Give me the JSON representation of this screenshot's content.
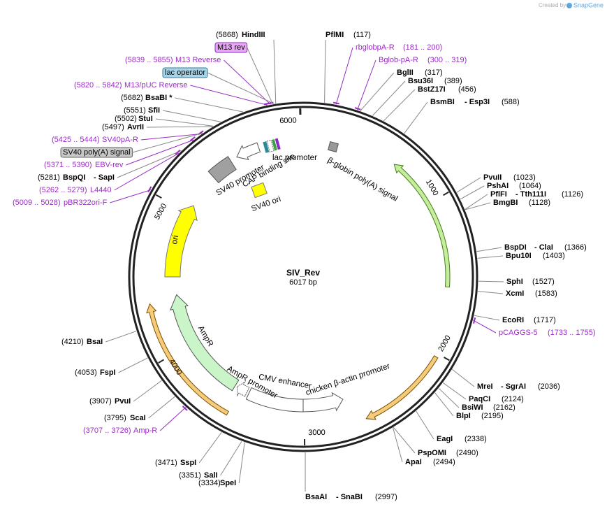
{
  "header": {
    "credit": "Created by",
    "brand": "SnapGene"
  },
  "plasmid": {
    "name": "SIV_Rev",
    "length": "6017 bp"
  },
  "ruler": [
    1000,
    2000,
    3000,
    4000,
    5000,
    6000
  ],
  "sites": [
    {
      "names": [
        "HindIII"
      ],
      "position": "(5868)"
    },
    {
      "names": [
        "BsaBI *"
      ],
      "position": "(5682)"
    },
    {
      "names": [
        "SfiI"
      ],
      "position": "(5551)"
    },
    {
      "names": [
        "StuI"
      ],
      "position": "(5502)"
    },
    {
      "names": [
        "AvrII"
      ],
      "position": "(5497)"
    },
    {
      "names": [
        "BspQI",
        "- SapI"
      ],
      "position": "(5281)"
    },
    {
      "names": [
        "BsaI"
      ],
      "position": "(4210)"
    },
    {
      "names": [
        "FspI"
      ],
      "position": "(4053)"
    },
    {
      "names": [
        "PvuI"
      ],
      "position": "(3907)"
    },
    {
      "names": [
        "ScaI"
      ],
      "position": "(3795)"
    },
    {
      "names": [
        "SspI"
      ],
      "position": "(3471)"
    },
    {
      "names": [
        "SalI"
      ],
      "position": "(3351)"
    },
    {
      "names": [
        "SpeI"
      ],
      "position": "(3334)"
    },
    {
      "names": [
        "PflMI"
      ],
      "position": "(117)"
    },
    {
      "names": [
        "BglII"
      ],
      "position": "(317)"
    },
    {
      "names": [
        "Bsu36I"
      ],
      "position": "(389)"
    },
    {
      "names": [
        "BstZ17I"
      ],
      "position": "(456)"
    },
    {
      "names": [
        "BsmBI",
        "- Esp3I"
      ],
      "position": "(588)"
    },
    {
      "names": [
        "PvuII"
      ],
      "position": "(1023)"
    },
    {
      "names": [
        "PshAI"
      ],
      "position": "(1064)"
    },
    {
      "names": [
        "PflFI",
        "- Tth111I"
      ],
      "position": "(1126)"
    },
    {
      "names": [
        "BmgBI"
      ],
      "position": "(1128)"
    },
    {
      "names": [
        "BspDI",
        "- ClaI"
      ],
      "position": "(1366)"
    },
    {
      "names": [
        "Bpu10I"
      ],
      "position": "(1403)"
    },
    {
      "names": [
        "SphI"
      ],
      "position": "(1527)"
    },
    {
      "names": [
        "XcmI"
      ],
      "position": "(1583)"
    },
    {
      "names": [
        "EcoRI"
      ],
      "position": "(1717)"
    },
    {
      "names": [
        "MreI",
        "- SgrAI"
      ],
      "position": "(2036)"
    },
    {
      "names": [
        "PaqCI"
      ],
      "position": "(2124)"
    },
    {
      "names": [
        "BsiWI"
      ],
      "position": "(2162)"
    },
    {
      "names": [
        "BlpI"
      ],
      "position": "(2195)"
    },
    {
      "names": [
        "EagI"
      ],
      "position": "(2338)"
    },
    {
      "names": [
        "PspOMI"
      ],
      "position": "(2490)"
    },
    {
      "names": [
        "ApaI"
      ],
      "position": "(2494)"
    },
    {
      "names": [
        "BsaAI",
        "- SnaBI"
      ],
      "position": "(2997)"
    }
  ],
  "primers": [
    {
      "name": "M13 Reverse",
      "range": "(5839 .. 5855)"
    },
    {
      "name": "M13/pUC Reverse",
      "range": "(5820 .. 5842)"
    },
    {
      "name": "SV40pA-R",
      "range": "(5425 .. 5444)"
    },
    {
      "name": "EBV-rev",
      "range": "(5371 .. 5390)"
    },
    {
      "name": "L4440",
      "range": "(5262 .. 5279)"
    },
    {
      "name": "pBR322ori-F",
      "range": "(5009 .. 5028)"
    },
    {
      "name": "Amp-R",
      "range": "(3707 .. 3726)"
    },
    {
      "name": "rbglobpA-R",
      "range": "(181 .. 200)"
    },
    {
      "name": "Bglob-pA-R",
      "range": "(300 .. 319)"
    },
    {
      "name": "pCAGGS-5",
      "range": "(1733 .. 1755)"
    }
  ],
  "boxed_features": [
    "M13 rev",
    "lac operator",
    "SV40 poly(A) signal"
  ],
  "features": [
    "SV40 promoter",
    "CAP binding site",
    "lac promoter",
    "β-globin poly(A) signal",
    "SV40 ori",
    "ori",
    "AmpR",
    "AmpR promoter",
    "CMV enhancer",
    "chicken β-actin promoter"
  ]
}
